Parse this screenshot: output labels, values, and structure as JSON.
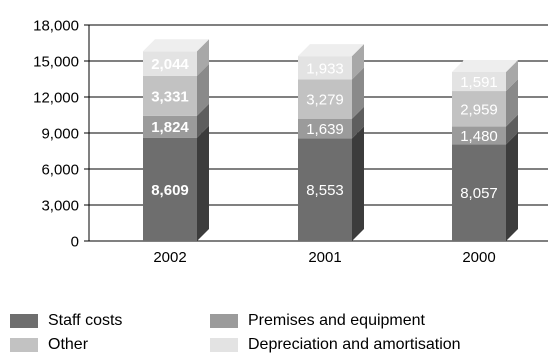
{
  "chart_data": {
    "type": "bar",
    "stacked": true,
    "three_d": true,
    "categories": [
      "2002",
      "2001",
      "2000"
    ],
    "series": [
      {
        "name": "Staff costs",
        "values": [
          8609,
          8553,
          8057
        ],
        "color": "#6e6e6e",
        "side": "#3c3c3c",
        "top": "#8a8a8a",
        "label_color": "#ffffff"
      },
      {
        "name": "Premises and equipment",
        "values": [
          1824,
          1639,
          1480
        ],
        "color": "#9b9b9b",
        "side": "#5e5e5e",
        "top": "#b0b0b0",
        "label_color": "#ffffff"
      },
      {
        "name": "Other",
        "values": [
          3331,
          3279,
          2959
        ],
        "color": "#c2c2c2",
        "side": "#8a8a8a",
        "top": "#d2d2d2",
        "label_color": "#ffffff"
      },
      {
        "name": "Depreciation and amortisation",
        "values": [
          2044,
          1933,
          1591
        ],
        "color": "#e3e3e3",
        "side": "#a8a8a8",
        "top": "#eeeeee",
        "label_color": "#ffffff"
      }
    ],
    "data_labels": [
      [
        "8,609",
        "8,553",
        "8,057"
      ],
      [
        "1,824",
        "1,639",
        "1,480"
      ],
      [
        "3,331",
        "3,279",
        "2,959"
      ],
      [
        "2,044",
        "1,933",
        "1,591"
      ]
    ],
    "bold_category_index": 0,
    "y_ticks": [
      "0",
      "3,000",
      "6,000",
      "9,000",
      "12,000",
      "15,000",
      "18,000"
    ],
    "ylim": [
      0,
      18000
    ],
    "y_step": 3000,
    "grid": true,
    "legend_position": "bottom"
  }
}
